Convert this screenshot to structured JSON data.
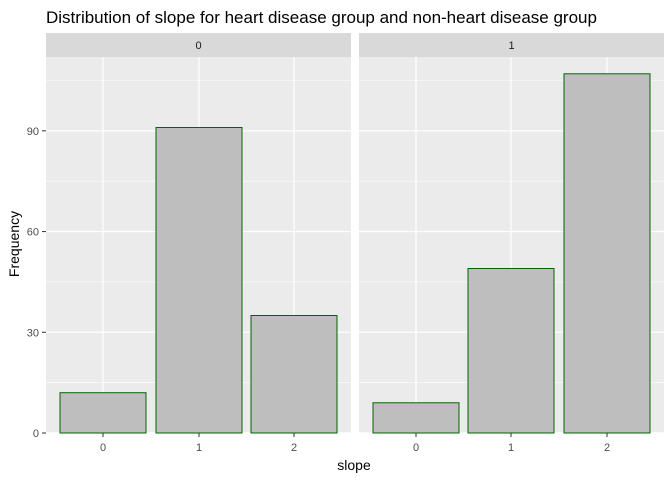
{
  "chart_data": {
    "type": "bar",
    "title": "Distribution of slope for heart disease group and non-heart disease group",
    "xlabel": "slope",
    "ylabel": "Frequency",
    "categories": [
      "0",
      "1",
      "2"
    ],
    "y_ticks": [
      "0",
      "30",
      "60",
      "90"
    ],
    "ylim": [
      0,
      112
    ],
    "grid": true,
    "facets": [
      {
        "label": "0",
        "values": [
          12,
          91,
          35
        ]
      },
      {
        "label": "1",
        "values": [
          9,
          49,
          107
        ]
      }
    ],
    "colors": {
      "bar_fill": "#bebebe",
      "bar_stroke": "#006400",
      "panel_bg": "#ebebeb",
      "strip_bg": "#d9d9d9",
      "grid": "#ffffff"
    }
  }
}
